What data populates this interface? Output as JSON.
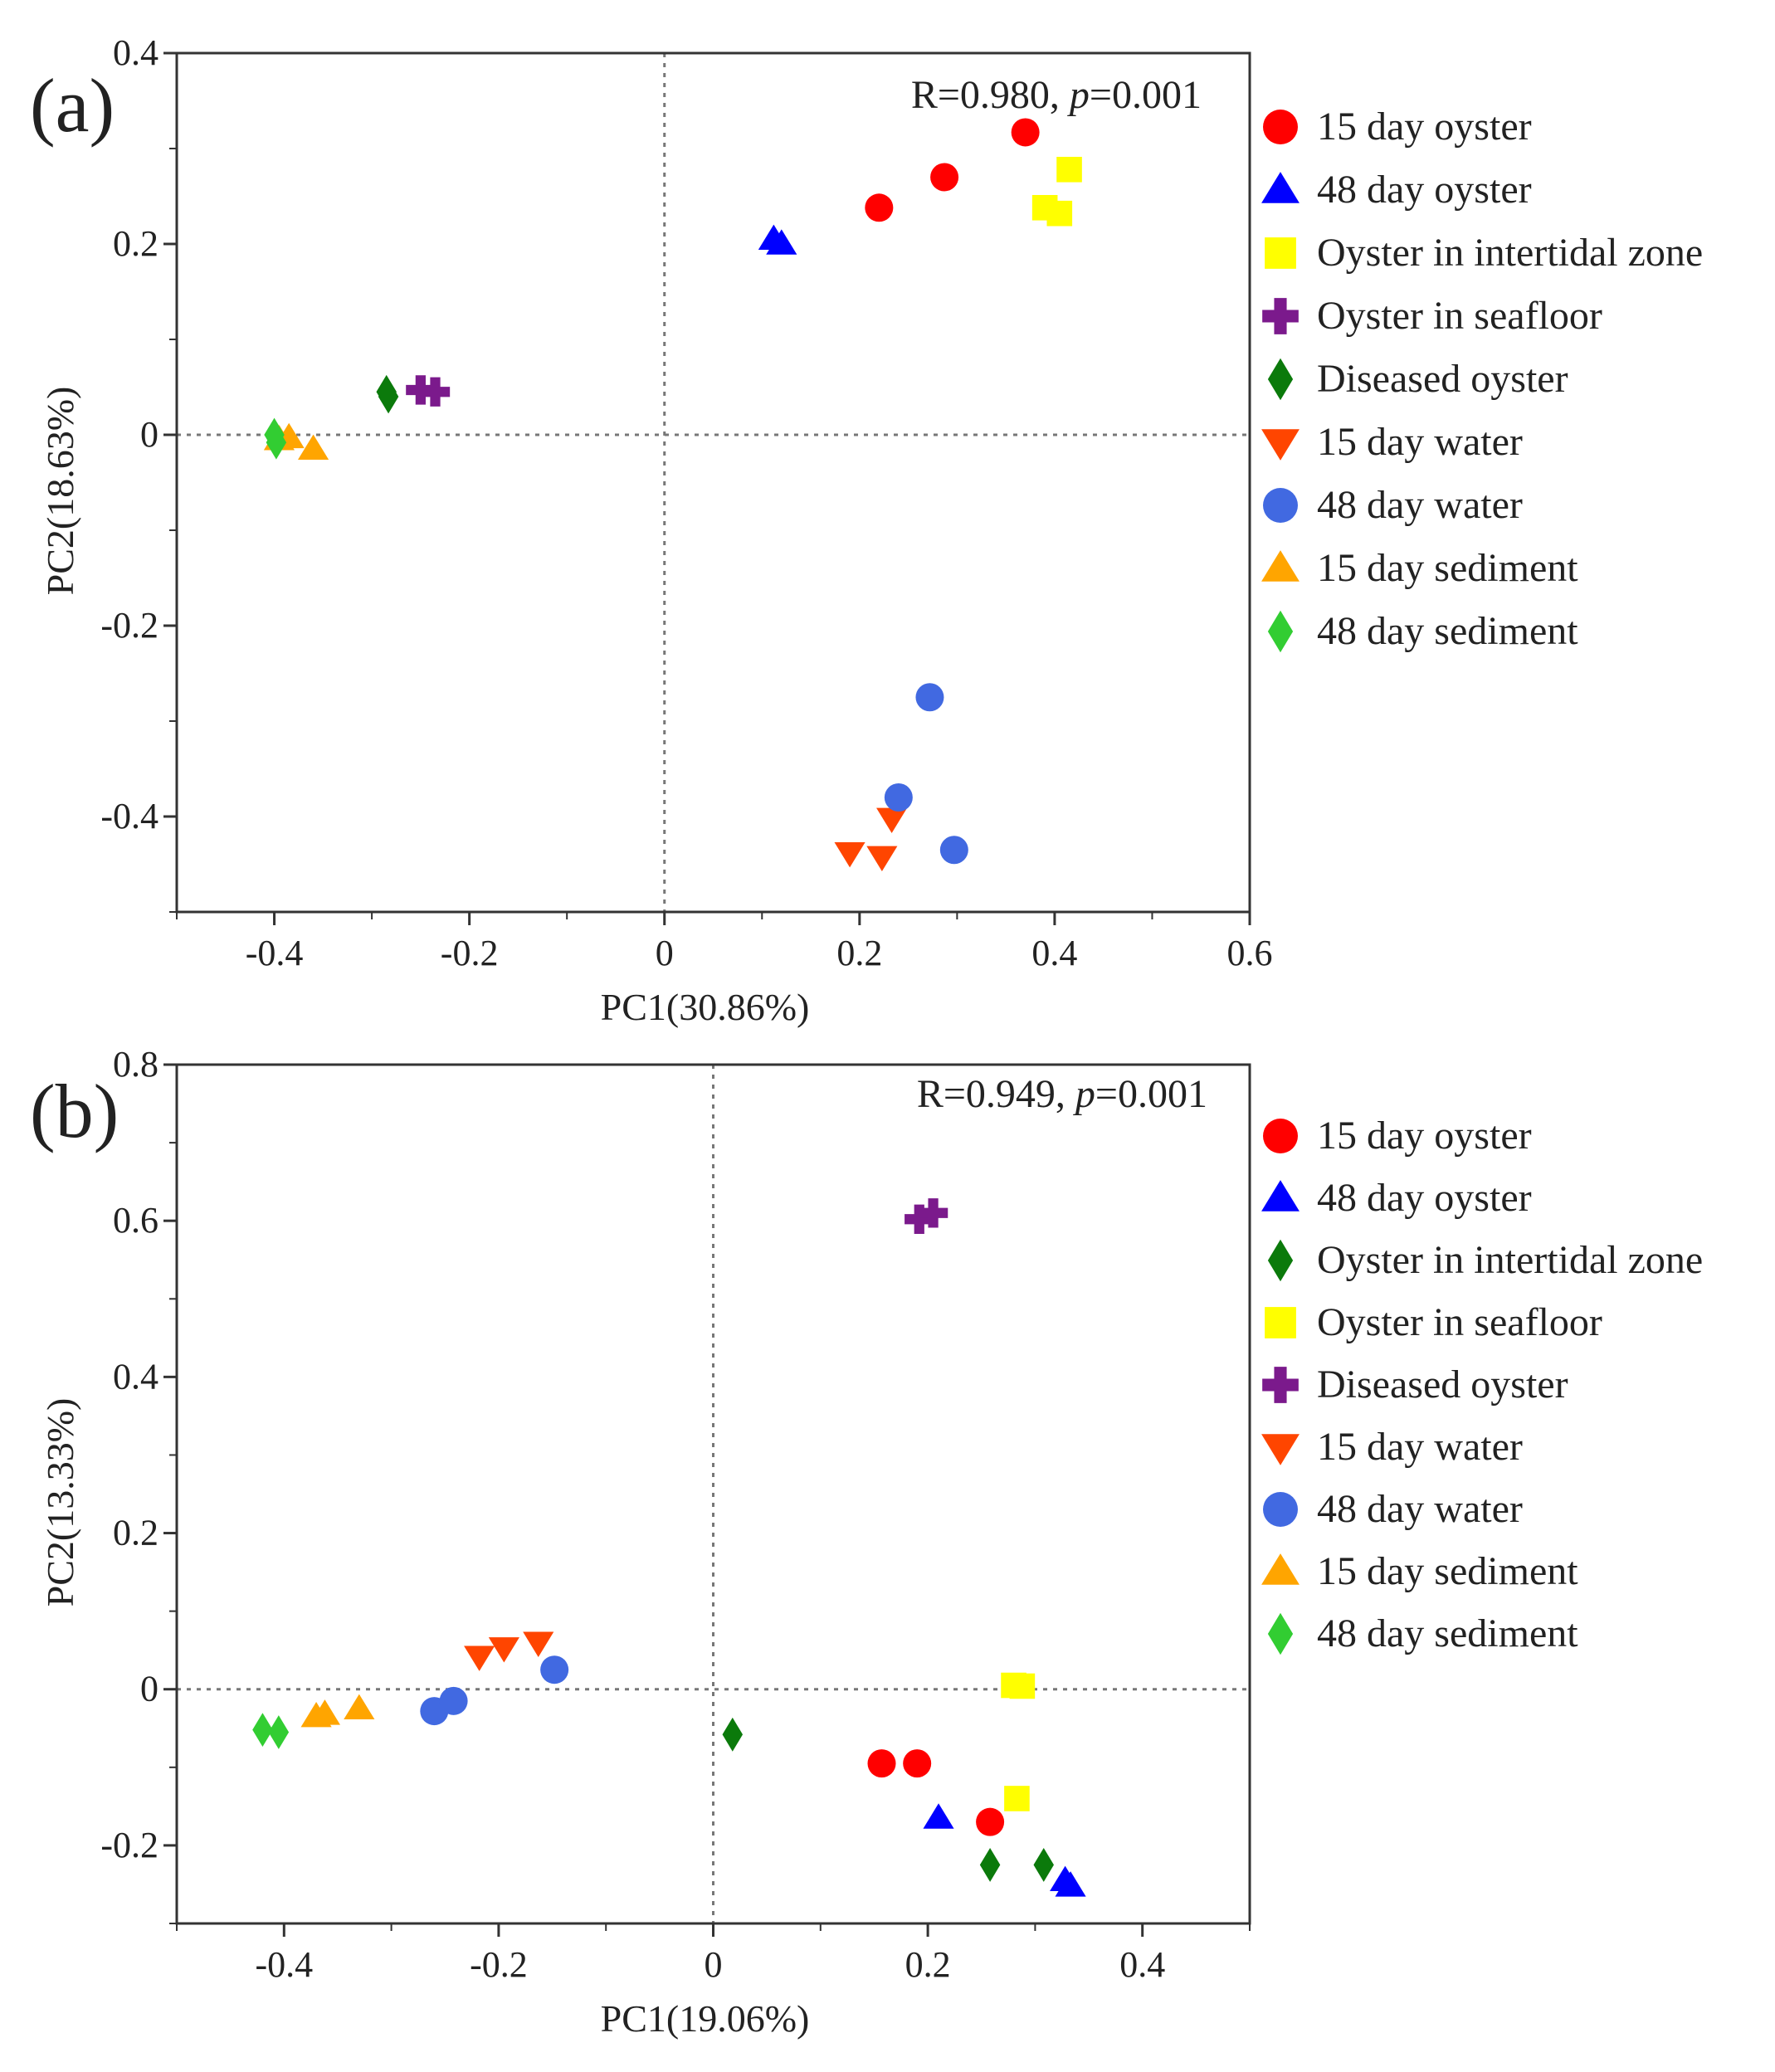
{
  "chart_data": [
    {
      "type": "scatter",
      "panel_label": "(a)",
      "xlabel": "PC1(30.86%)",
      "ylabel": "PC2(18.63%)",
      "xlim": [
        -0.5,
        0.6
      ],
      "ylim": [
        -0.5,
        0.4
      ],
      "xticks": [
        -0.4,
        -0.2,
        0,
        0.2,
        0.4,
        0.6
      ],
      "xtick_labels": [
        "-0.4",
        "-0.2",
        "0",
        "0.2",
        "0.4",
        "0.6"
      ],
      "yticks": [
        -0.4,
        -0.2,
        0,
        0.2,
        0.4
      ],
      "ytick_labels": [
        "-0.4",
        "-0.2",
        "0",
        "0.2",
        "0.4"
      ],
      "annotation": {
        "r_text": "R=0.980,",
        "p_symbol": "p",
        "p_value": "=0.001"
      },
      "legend_position": "right",
      "series": [
        {
          "name": "15 day oyster",
          "marker": "circle",
          "color": "#ff0000",
          "points": [
            [
              0.22,
              0.238
            ],
            [
              0.287,
              0.27
            ],
            [
              0.37,
              0.317
            ]
          ]
        },
        {
          "name": "48 day oyster",
          "marker": "triangle-up",
          "color": "#0000ff",
          "points": [
            [
              0.112,
              0.205
            ],
            [
              0.12,
              0.2
            ]
          ]
        },
        {
          "name": "Oyster in intertidal zone",
          "marker": "square",
          "color": "#ffff00",
          "points": [
            [
              0.415,
              0.278
            ],
            [
              0.39,
              0.238
            ],
            [
              0.405,
              0.232
            ]
          ]
        },
        {
          "name": "Oyster in seafloor",
          "marker": "cross",
          "color": "#7b1a8c",
          "points": [
            [
              -0.25,
              0.047
            ],
            [
              -0.235,
              0.045
            ]
          ]
        },
        {
          "name": "Diseased oyster",
          "marker": "diamond",
          "color": "#0b7a0b",
          "points": [
            [
              -0.285,
              0.045
            ],
            [
              -0.283,
              0.04
            ]
          ]
        },
        {
          "name": "15 day water",
          "marker": "triangle-down",
          "color": "#ff4500",
          "points": [
            [
              0.233,
              -0.402
            ],
            [
              0.19,
              -0.438
            ],
            [
              0.223,
              -0.442
            ]
          ]
        },
        {
          "name": "48 day water",
          "marker": "circle",
          "color": "#4169e1",
          "points": [
            [
              0.272,
              -0.275
            ],
            [
              0.24,
              -0.38
            ],
            [
              0.297,
              -0.435
            ]
          ]
        },
        {
          "name": "15 day sediment",
          "marker": "triangle-up",
          "color": "#ffa500",
          "points": [
            [
              -0.395,
              -0.005
            ],
            [
              -0.385,
              -0.003
            ],
            [
              -0.36,
              -0.015
            ]
          ]
        },
        {
          "name": "48 day sediment",
          "marker": "diamond",
          "color": "#32cd32",
          "points": [
            [
              -0.4,
              0.0
            ],
            [
              -0.398,
              -0.008
            ]
          ]
        }
      ]
    },
    {
      "type": "scatter",
      "panel_label": "(b)",
      "xlabel": "PC1(19.06%)",
      "ylabel": "PC2(13.33%)",
      "xlim": [
        -0.5,
        0.5
      ],
      "ylim": [
        -0.3,
        0.8
      ],
      "xticks": [
        -0.4,
        -0.2,
        0,
        0.2,
        0.4
      ],
      "xtick_labels": [
        "-0.4",
        "-0.2",
        "0",
        "0.2",
        "0.4"
      ],
      "yticks": [
        -0.2,
        0,
        0.2,
        0.4,
        0.6,
        0.8
      ],
      "ytick_labels": [
        "-0.2",
        "0",
        "0.2",
        "0.4",
        "0.6",
        "0.8"
      ],
      "annotation": {
        "r_text": "R=0.949,",
        "p_symbol": "p",
        "p_value": "=0.001"
      },
      "legend_position": "right",
      "series": [
        {
          "name": "15 day oyster",
          "marker": "circle",
          "color": "#ff0000",
          "points": [
            [
              0.157,
              -0.095
            ],
            [
              0.19,
              -0.095
            ],
            [
              0.258,
              -0.17
            ]
          ]
        },
        {
          "name": "48 day oyster",
          "marker": "triangle-up",
          "color": "#0000ff",
          "points": [
            [
              0.21,
              -0.165
            ],
            [
              0.328,
              -0.245
            ],
            [
              0.333,
              -0.252
            ]
          ]
        },
        {
          "name": "Oyster in intertidal zone",
          "marker": "diamond",
          "color": "#0b7a0b",
          "points": [
            [
              0.018,
              -0.058
            ],
            [
              0.258,
              -0.225
            ],
            [
              0.308,
              -0.225
            ]
          ]
        },
        {
          "name": "Oyster in seafloor",
          "marker": "square",
          "color": "#ffff00",
          "points": [
            [
              0.28,
              0.005
            ],
            [
              0.288,
              0.004
            ],
            [
              0.283,
              -0.14
            ]
          ]
        },
        {
          "name": "Diseased oyster",
          "marker": "cross",
          "color": "#7b1a8c",
          "points": [
            [
              0.192,
              0.602
            ],
            [
              0.205,
              0.61
            ]
          ]
        },
        {
          "name": "15 day water",
          "marker": "triangle-down",
          "color": "#ff4500",
          "points": [
            [
              -0.218,
              0.042
            ],
            [
              -0.195,
              0.053
            ],
            [
              -0.163,
              0.06
            ]
          ]
        },
        {
          "name": "48 day water",
          "marker": "circle",
          "color": "#4169e1",
          "points": [
            [
              -0.26,
              -0.028
            ],
            [
              -0.242,
              -0.015
            ],
            [
              -0.148,
              0.025
            ]
          ]
        },
        {
          "name": "15 day sediment",
          "marker": "triangle-up",
          "color": "#ffa500",
          "points": [
            [
              -0.37,
              -0.035
            ],
            [
              -0.362,
              -0.032
            ],
            [
              -0.33,
              -0.025
            ]
          ]
        },
        {
          "name": "48 day sediment",
          "marker": "diamond",
          "color": "#32cd32",
          "points": [
            [
              -0.42,
              -0.052
            ],
            [
              -0.405,
              -0.055
            ]
          ]
        }
      ]
    }
  ]
}
